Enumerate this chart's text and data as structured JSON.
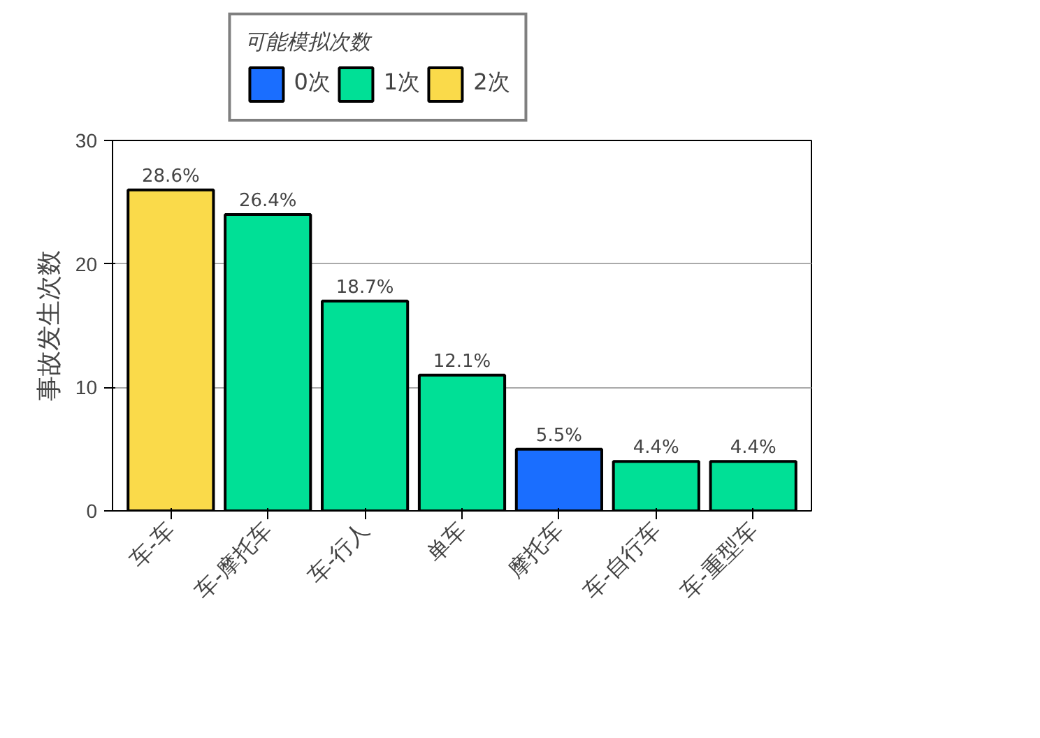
{
  "chart_data": {
    "type": "bar",
    "ylabel": "事故发生次数",
    "legend_title": "可能模拟次数",
    "categories": [
      "车-车",
      "车-摩托车",
      "车-行人",
      "单车",
      "摩托车",
      "车-自行车",
      "车-重型车"
    ],
    "series": [
      {
        "name": "0次",
        "color": "#1a6eff",
        "values": [
          null,
          null,
          null,
          null,
          5,
          null,
          null
        ]
      },
      {
        "name": "1次",
        "color": "#00e096",
        "values": [
          null,
          24,
          17,
          11,
          null,
          4,
          4
        ]
      },
      {
        "name": "2次",
        "color": "#fada4a",
        "values": [
          26,
          null,
          null,
          null,
          null,
          null,
          null
        ]
      }
    ],
    "annotations": [
      {
        "text": "28.6%",
        "x": "车-车",
        "y": 26
      },
      {
        "text": "26.4%",
        "x": "车-摩托车",
        "y": 24
      },
      {
        "text": "18.7%",
        "x": "车-行人",
        "y": 17
      },
      {
        "text": "12.1%",
        "x": "单车",
        "y": 11
      },
      {
        "text": "5.5%",
        "x": "摩托车",
        "y": 5
      },
      {
        "text": "4.4%",
        "x": "车-自行车",
        "y": 4
      },
      {
        "text": "4.4%",
        "x": "车-重型车",
        "y": 4
      }
    ],
    "ylim": [
      0,
      30
    ],
    "yticks": [
      0,
      10,
      20,
      30
    ],
    "grid": "y",
    "legend": "top"
  }
}
